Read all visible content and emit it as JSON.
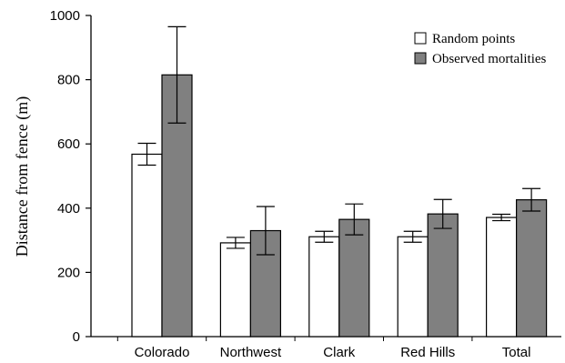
{
  "chart_data": {
    "type": "bar",
    "title": "",
    "xlabel": "",
    "ylabel": "Distance from fence (m)",
    "ylim": [
      0,
      1000
    ],
    "yticks": [
      0,
      200,
      400,
      600,
      800,
      1000
    ],
    "categories": [
      "Colorado",
      "Northwest",
      "Clark",
      "Red Hills",
      "Total"
    ],
    "series": [
      {
        "name": "Random points",
        "color": "#ffffff",
        "values": [
          568,
          292,
          311,
          311,
          371
        ],
        "error": [
          34,
          17,
          17,
          17,
          10
        ]
      },
      {
        "name": "Observed mortalities",
        "color": "#808080",
        "values": [
          815,
          330,
          365,
          382,
          426
        ],
        "error": [
          150,
          75,
          48,
          45,
          35
        ]
      }
    ],
    "legend_position": "top-right",
    "error_bars": true,
    "grid": false
  }
}
